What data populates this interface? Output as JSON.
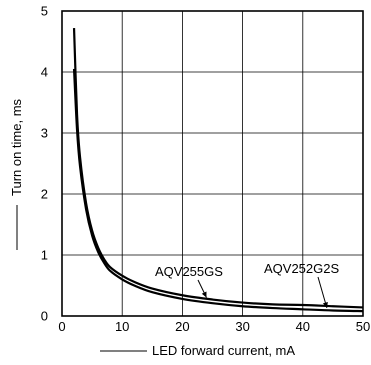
{
  "chart_data": {
    "type": "line",
    "title": "",
    "xlabel": "LED forward current, mA",
    "ylabel": "Turn on time, ms",
    "xlim": [
      0,
      50
    ],
    "ylim": [
      0,
      5
    ],
    "xticks": [
      0,
      10,
      20,
      30,
      40,
      50
    ],
    "yticks": [
      0,
      1,
      2,
      3,
      4,
      5
    ],
    "grid": true,
    "legend": "annotations",
    "series": [
      {
        "name": "AQV255GS",
        "x": [
          2,
          2.5,
          3,
          4,
          5,
          6,
          7,
          8,
          10,
          12,
          15,
          20,
          25,
          30,
          35,
          40,
          45,
          50
        ],
        "y": [
          4.72,
          3.3,
          2.6,
          1.85,
          1.4,
          1.12,
          0.93,
          0.8,
          0.66,
          0.56,
          0.45,
          0.34,
          0.27,
          0.22,
          0.19,
          0.18,
          0.16,
          0.14
        ]
      },
      {
        "name": "AQV252G2S",
        "x": [
          2,
          2.5,
          3,
          4,
          5,
          6,
          7,
          8,
          10,
          12,
          15,
          20,
          25,
          30,
          35,
          40,
          45,
          50
        ],
        "y": [
          4.05,
          3.05,
          2.45,
          1.75,
          1.32,
          1.05,
          0.87,
          0.74,
          0.6,
          0.5,
          0.39,
          0.28,
          0.21,
          0.16,
          0.13,
          0.11,
          0.09,
          0.08
        ]
      }
    ],
    "annotations": [
      {
        "text": "AQV255GS",
        "series": "AQV255GS",
        "point": [
          24,
          0.27
        ]
      },
      {
        "text": "AQV252G2S",
        "series": "AQV252G2S",
        "point": [
          44,
          0.1
        ]
      }
    ]
  }
}
